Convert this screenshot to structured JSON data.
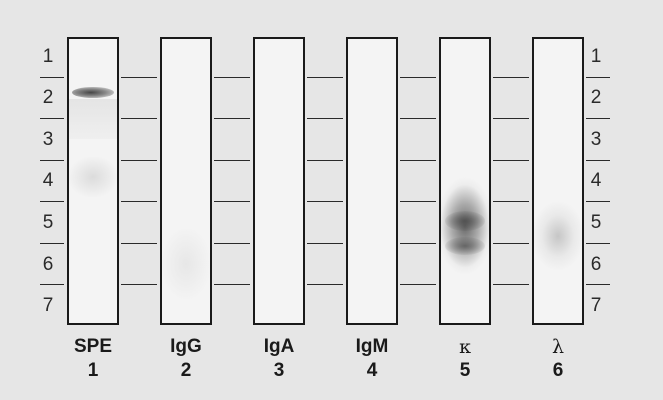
{
  "zone_labels": [
    "1",
    "2",
    "3",
    "4",
    "5",
    "6",
    "7"
  ],
  "lanes": [
    {
      "name": "SPE",
      "number": "1"
    },
    {
      "name": "IgG",
      "number": "2"
    },
    {
      "name": "IgA",
      "number": "3"
    },
    {
      "name": "IgM",
      "number": "4"
    },
    {
      "name": "κ",
      "number": "5"
    },
    {
      "name": "λ",
      "number": "6"
    }
  ],
  "colors": {
    "background": "#e6e6e6",
    "lane_fill": "#f4f4f4",
    "lane_border": "#1a1a1a",
    "band": "#6b6b6b"
  }
}
